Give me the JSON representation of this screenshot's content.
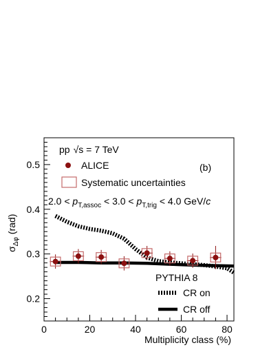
{
  "chart_data": {
    "type": "scatter",
    "xlabel": "Multiplicity class (%)",
    "ylabel_main": "σ",
    "ylabel_sub": "Δφ",
    "ylabel_unit": "(rad)",
    "xlim": [
      0,
      83
    ],
    "ylim": [
      0.15,
      0.56
    ],
    "x_ticks": [
      0,
      20,
      40,
      60,
      80
    ],
    "x_tick_labels": [
      "0",
      "20",
      "40",
      "60",
      "80"
    ],
    "y_ticks": [
      0.2,
      0.3,
      0.4,
      0.5
    ],
    "y_tick_labels": [
      "0.2",
      "0.3",
      "0.4",
      "0.5"
    ],
    "annotations": {
      "system_pp": "pp",
      "system_energy": "√s = 7 TeV",
      "panel": "(b)",
      "kinematic_range": {
        "p1": "2.0 < ",
        "p2": "p",
        "p3": "T,assoc",
        "p4": " < 3.0 < ",
        "p5": "p",
        "p6": "T,trig",
        "p7": " < 4.0 GeV/",
        "p8": "c"
      },
      "model": "PYTHIA 8"
    },
    "legend": {
      "data": "ALICE",
      "syst": "Systematic uncertainties",
      "cr_on": "CR on",
      "cr_off": "CR off"
    },
    "colors": {
      "data": "#8b1010",
      "syst_box": "#c46a6a",
      "curve": "#000000"
    },
    "series": [
      {
        "name": "ALICE",
        "x": [
          5,
          15,
          25,
          35,
          45,
          55,
          65,
          75
        ],
        "y": [
          0.283,
          0.295,
          0.293,
          0.279,
          0.302,
          0.29,
          0.285,
          0.292
        ],
        "stat_err": [
          0.016,
          0.016,
          0.016,
          0.016,
          0.016,
          0.016,
          0.016,
          0.026
        ],
        "syst_err": [
          0.01,
          0.01,
          0.01,
          0.01,
          0.01,
          0.01,
          0.01,
          0.01
        ]
      },
      {
        "name": "CR on",
        "x": [
          5,
          10,
          15,
          20,
          25,
          30,
          35,
          40,
          45,
          50,
          55,
          60,
          65,
          70,
          75,
          80,
          83
        ],
        "y": [
          0.385,
          0.372,
          0.362,
          0.356,
          0.352,
          0.346,
          0.334,
          0.311,
          0.292,
          0.284,
          0.281,
          0.279,
          0.277,
          0.275,
          0.272,
          0.268,
          0.258
        ]
      },
      {
        "name": "CR off",
        "x": [
          5,
          15,
          25,
          35,
          45,
          55,
          65,
          75,
          83
        ],
        "y": [
          0.281,
          0.281,
          0.28,
          0.28,
          0.279,
          0.277,
          0.275,
          0.274,
          0.273
        ]
      }
    ]
  }
}
